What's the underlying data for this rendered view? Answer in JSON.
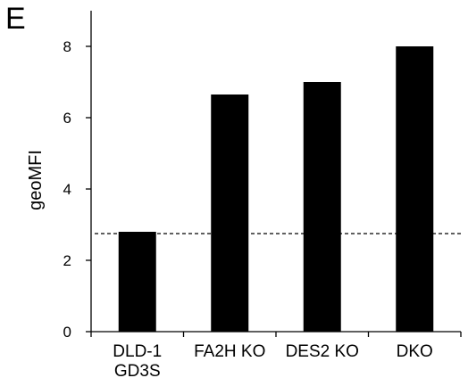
{
  "panel_label": "E",
  "chart_data": {
    "type": "bar",
    "categories": [
      [
        "DLD-1",
        "GD3S"
      ],
      [
        "FA2H KO"
      ],
      [
        "DES2 KO"
      ],
      [
        "DKO"
      ]
    ],
    "values": [
      2.8,
      6.65,
      7.0,
      8.0
    ],
    "title": "",
    "xlabel": "",
    "ylabel": "geoMFI",
    "ylim": [
      0,
      9
    ],
    "yticks": [
      0,
      2,
      4,
      6,
      8
    ],
    "bar_color": "#000000",
    "reference_line": {
      "y": 2.75,
      "style": "dashed"
    },
    "grid": false,
    "legend": "none"
  }
}
